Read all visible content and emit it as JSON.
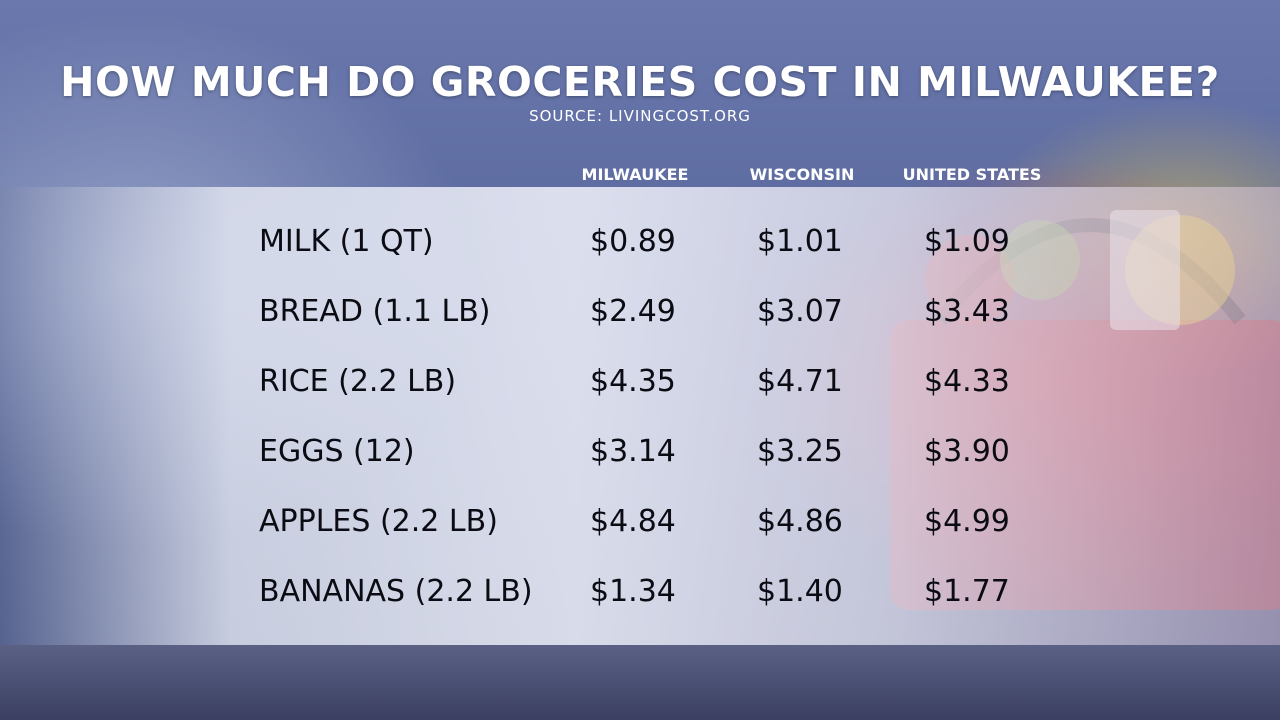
{
  "header": {
    "title": "HOW MUCH DO GROCERIES COST IN MILWAUKEE?",
    "source": "SOURCE: LIVINGCOST.ORG"
  },
  "chart_data": {
    "type": "table",
    "title": "HOW MUCH DO GROCERIES COST IN MILWAUKEE?",
    "subtitle": "SOURCE: LIVINGCOST.ORG",
    "columns": [
      "MILWAUKEE",
      "WISCONSIN",
      "UNITED STATES"
    ],
    "rows": [
      {
        "label": "MILK (1 QT)",
        "values": [
          "$0.89",
          "$1.01",
          "$1.09"
        ]
      },
      {
        "label": "BREAD (1.1 LB)",
        "values": [
          "$2.49",
          "$3.07",
          "$3.43"
        ]
      },
      {
        "label": "RICE (2.2 LB)",
        "values": [
          "$4.35",
          "$4.71",
          "$4.33"
        ]
      },
      {
        "label": "EGGS (12)",
        "values": [
          "$3.14",
          "$3.25",
          "$3.90"
        ]
      },
      {
        "label": "APPLES (2.2 LB)",
        "values": [
          "$4.84",
          "$4.86",
          "$4.99"
        ]
      },
      {
        "label": "BANANAS (2.2 LB)",
        "values": [
          "$1.34",
          "$1.40",
          "$1.77"
        ]
      }
    ]
  },
  "colors": {
    "header_text": "#ffffff",
    "table_text": "#0b0b14",
    "panel": "#eef0f8",
    "backdrop": "#56659a"
  }
}
